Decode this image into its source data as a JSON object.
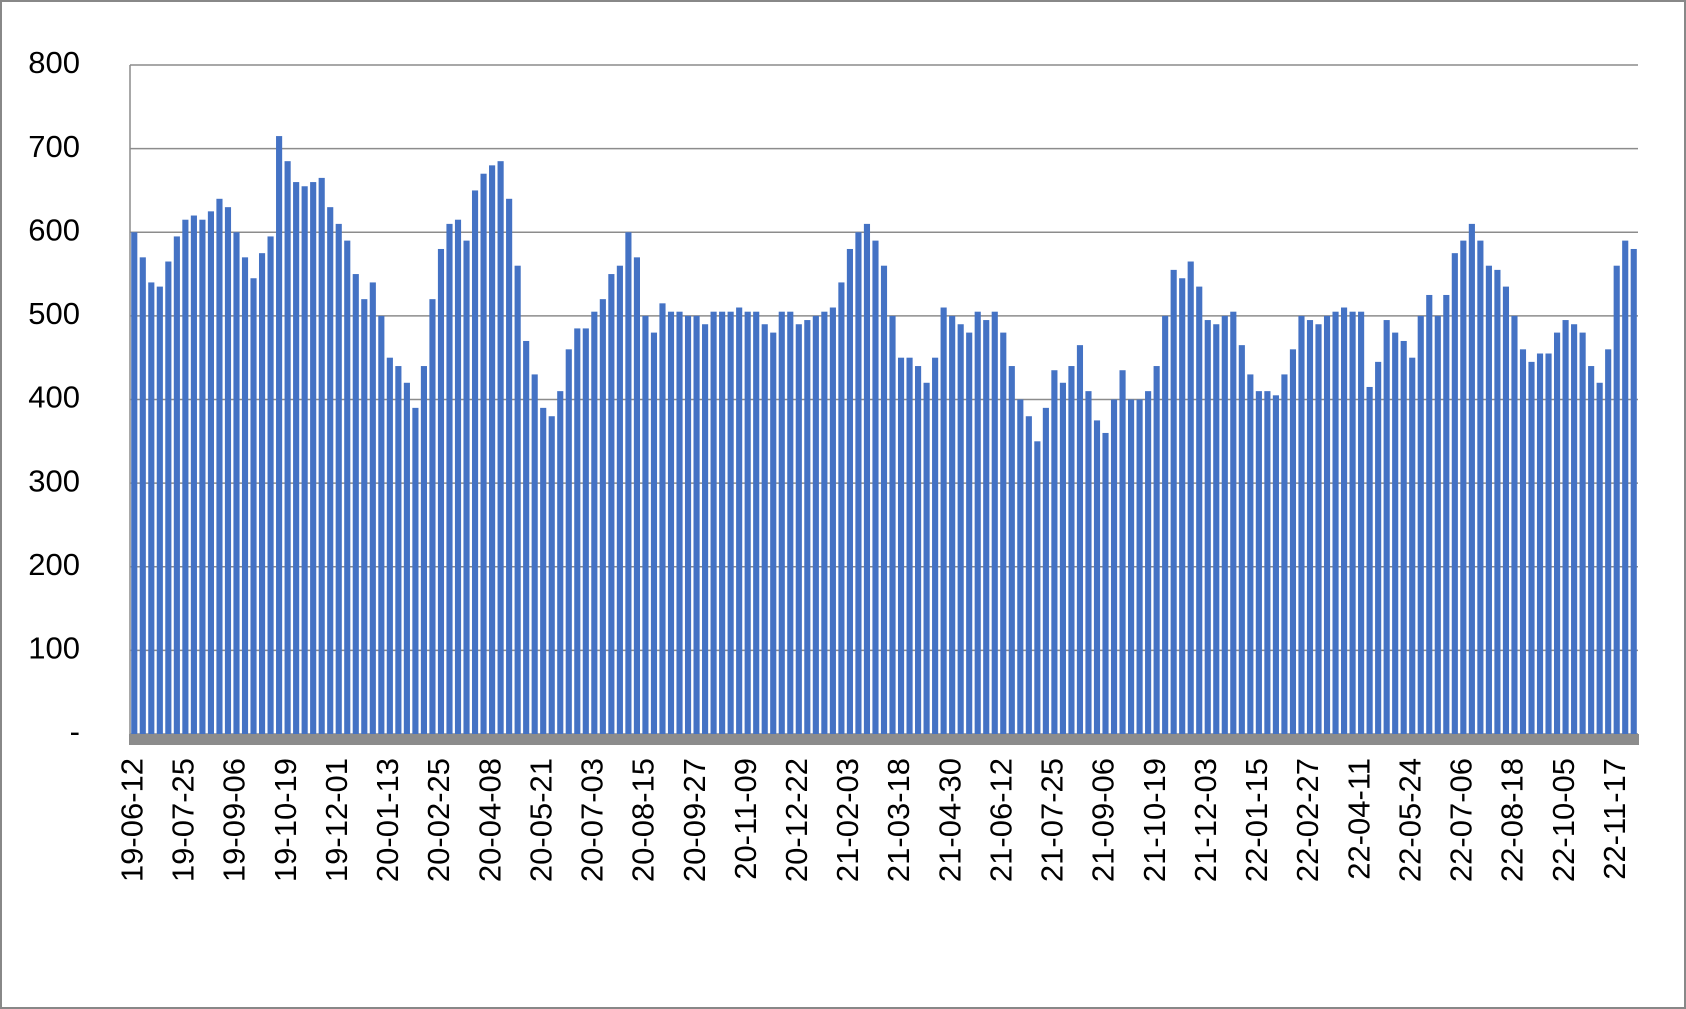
{
  "chart_data": {
    "type": "bar",
    "color": "#4472c4",
    "grid": true,
    "ylim": [
      0,
      800
    ],
    "yticks": [
      {
        "value": 0,
        "label": "-"
      },
      100,
      200,
      300,
      400,
      500,
      600,
      700,
      800
    ],
    "categories": [
      "19-06-12",
      null,
      null,
      null,
      null,
      null,
      "19-07-25",
      null,
      null,
      null,
      null,
      null,
      "19-09-06",
      null,
      null,
      null,
      null,
      null,
      "19-10-19",
      null,
      null,
      null,
      null,
      null,
      "19-12-01",
      null,
      null,
      null,
      null,
      null,
      "20-01-13",
      null,
      null,
      null,
      null,
      null,
      "20-02-25",
      null,
      null,
      null,
      null,
      null,
      "20-04-08",
      null,
      null,
      null,
      null,
      null,
      "20-05-21",
      null,
      null,
      null,
      null,
      null,
      "20-07-03",
      null,
      null,
      null,
      null,
      null,
      "20-08-15",
      null,
      null,
      null,
      null,
      null,
      "20-09-27",
      null,
      null,
      null,
      null,
      null,
      "20-11-09",
      null,
      null,
      null,
      null,
      null,
      "20-12-22",
      null,
      null,
      null,
      null,
      null,
      "21-02-03",
      null,
      null,
      null,
      null,
      null,
      "21-03-18",
      null,
      null,
      null,
      null,
      null,
      "21-04-30",
      null,
      null,
      null,
      null,
      null,
      "21-06-12",
      null,
      null,
      null,
      null,
      null,
      "21-07-25",
      null,
      null,
      null,
      null,
      null,
      "21-09-06",
      null,
      null,
      null,
      null,
      null,
      "21-10-19",
      null,
      null,
      null,
      null,
      null,
      "21-12-03",
      null,
      null,
      null,
      null,
      null,
      "22-01-15",
      null,
      null,
      null,
      null,
      null,
      "22-02-27",
      null,
      null,
      null,
      null,
      null,
      "22-04-11",
      null,
      null,
      null,
      null,
      null,
      "22-05-24",
      null,
      null,
      null,
      null,
      null,
      "22-07-06",
      null,
      null,
      null,
      null,
      null,
      "22-08-18",
      null,
      null,
      null,
      null,
      null,
      "22-10-05",
      null,
      null,
      null,
      null,
      null,
      "22-11-17",
      null,
      null
    ],
    "values": [
      600,
      570,
      540,
      535,
      565,
      595,
      615,
      620,
      615,
      625,
      640,
      630,
      600,
      570,
      545,
      575,
      595,
      715,
      685,
      660,
      655,
      660,
      665,
      630,
      610,
      590,
      550,
      520,
      540,
      500,
      450,
      440,
      420,
      390,
      440,
      520,
      580,
      610,
      615,
      590,
      650,
      670,
      680,
      685,
      640,
      560,
      470,
      430,
      390,
      380,
      410,
      460,
      485,
      485,
      505,
      520,
      550,
      560,
      600,
      570,
      500,
      480,
      515,
      505,
      505,
      500,
      500,
      490,
      505,
      505,
      505,
      510,
      505,
      505,
      490,
      480,
      505,
      505,
      490,
      495,
      500,
      505,
      510,
      540,
      580,
      600,
      610,
      590,
      560,
      500,
      450,
      450,
      440,
      420,
      450,
      510,
      500,
      490,
      480,
      505,
      495,
      505,
      480,
      440,
      400,
      380,
      350,
      390,
      435,
      420,
      440,
      465,
      410,
      375,
      360,
      400,
      435,
      400,
      400,
      410,
      440,
      500,
      555,
      545,
      565,
      535,
      495,
      490,
      500,
      505,
      465,
      430,
      410,
      410,
      405,
      430,
      460,
      500,
      495,
      490,
      500,
      505,
      510,
      505,
      505,
      415,
      445,
      495,
      480,
      470,
      450,
      500,
      525,
      500,
      525,
      575,
      590,
      610,
      590,
      560,
      555,
      535,
      500,
      460,
      445,
      455,
      455,
      480,
      495,
      490,
      480,
      440,
      420,
      460,
      560,
      590,
      580
    ]
  }
}
